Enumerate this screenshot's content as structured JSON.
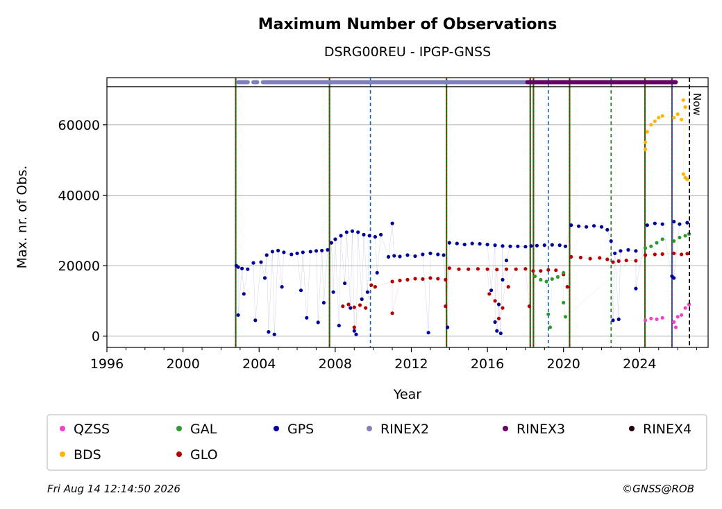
{
  "chart_data": {
    "type": "scatter",
    "title": "Maximum Number of Observations",
    "subtitle": "DSRG00REU - IPGP-GNSS",
    "xlabel": "Year",
    "ylabel": "Max. nr. of Obs.",
    "xlim": [
      1996,
      2027.6
    ],
    "ylim": [
      -3200,
      70800
    ],
    "x_ticks": [
      1996,
      2000,
      2004,
      2008,
      2012,
      2016,
      2020,
      2024
    ],
    "y_ticks": [
      0,
      20000,
      40000,
      60000
    ],
    "grid": true,
    "now_label": "Now",
    "now_year": 2026.62,
    "legend_position": "bottom",
    "legend": [
      {
        "name": "QZSS",
        "color": "#f042c8"
      },
      {
        "name": "GAL",
        "color": "#2e9a2e"
      },
      {
        "name": "GPS",
        "color": "#000099"
      },
      {
        "name": "RINEX2",
        "color": "#8080c0"
      },
      {
        "name": "RINEX3",
        "color": "#660066"
      },
      {
        "name": "RINEX4",
        "color": "#220011"
      },
      {
        "name": "BDS",
        "color": "#ffb400"
      },
      {
        "name": "GLO",
        "color": "#b30000"
      }
    ],
    "series": [
      {
        "name": "GPS",
        "color": "#000099",
        "points": [
          [
            2002.8,
            20000
          ],
          [
            2002.9,
            19600
          ],
          [
            2003.1,
            19200
          ],
          [
            2003.4,
            19000
          ],
          [
            2003.7,
            20800
          ],
          [
            2004.1,
            21000
          ],
          [
            2004.4,
            23000
          ],
          [
            2004.7,
            24000
          ],
          [
            2005.0,
            24300
          ],
          [
            2005.3,
            23800
          ],
          [
            2005.7,
            23200
          ],
          [
            2006.0,
            23500
          ],
          [
            2006.3,
            23800
          ],
          [
            2006.7,
            24000
          ],
          [
            2007.0,
            24200
          ],
          [
            2007.3,
            24300
          ],
          [
            2007.6,
            24500
          ],
          [
            2007.8,
            26500
          ],
          [
            2008.0,
            27500
          ],
          [
            2008.3,
            28500
          ],
          [
            2008.6,
            29500
          ],
          [
            2008.9,
            29800
          ],
          [
            2009.2,
            29500
          ],
          [
            2009.5,
            28800
          ],
          [
            2009.8,
            28500
          ],
          [
            2010.1,
            28200
          ],
          [
            2010.4,
            28800
          ],
          [
            2010.8,
            22500
          ],
          [
            2011.1,
            22800
          ],
          [
            2011.4,
            22600
          ],
          [
            2011.8,
            23000
          ],
          [
            2012.2,
            22700
          ],
          [
            2012.6,
            23200
          ],
          [
            2013.0,
            23500
          ],
          [
            2013.4,
            23200
          ],
          [
            2013.7,
            23000
          ],
          [
            2014.0,
            26500
          ],
          [
            2014.4,
            26300
          ],
          [
            2014.8,
            26000
          ],
          [
            2015.2,
            26300
          ],
          [
            2015.6,
            26200
          ],
          [
            2016.0,
            26000
          ],
          [
            2016.4,
            25800
          ],
          [
            2016.8,
            25600
          ],
          [
            2017.2,
            25500
          ],
          [
            2017.6,
            25500
          ],
          [
            2018.0,
            25400
          ],
          [
            2018.3,
            25600
          ],
          [
            2018.6,
            25700
          ],
          [
            2019.0,
            25800
          ],
          [
            2019.4,
            25900
          ],
          [
            2019.8,
            25800
          ],
          [
            2020.1,
            25500
          ],
          [
            2020.4,
            31500
          ],
          [
            2020.8,
            31200
          ],
          [
            2021.2,
            31000
          ],
          [
            2021.6,
            31300
          ],
          [
            2022.0,
            31000
          ],
          [
            2022.3,
            30200
          ],
          [
            2022.5,
            27000
          ],
          [
            2022.7,
            23500
          ],
          [
            2023.0,
            24200
          ],
          [
            2023.4,
            24500
          ],
          [
            2023.8,
            24200
          ],
          [
            2024.4,
            31500
          ],
          [
            2024.8,
            32000
          ],
          [
            2025.2,
            31800
          ],
          [
            2025.8,
            32500
          ],
          [
            2026.1,
            31800
          ],
          [
            2026.5,
            32200
          ],
          [
            2002.9,
            6000
          ],
          [
            2003.2,
            12000
          ],
          [
            2003.8,
            4500
          ],
          [
            2004.3,
            16500
          ],
          [
            2004.5,
            1200
          ],
          [
            2004.8,
            500
          ],
          [
            2005.2,
            14000
          ],
          [
            2006.2,
            13000
          ],
          [
            2006.5,
            5200
          ],
          [
            2007.1,
            3900
          ],
          [
            2007.4,
            9500
          ],
          [
            2007.9,
            12500
          ],
          [
            2008.2,
            3000
          ],
          [
            2008.5,
            15000
          ],
          [
            2008.8,
            8000
          ],
          [
            2009.0,
            1500
          ],
          [
            2009.1,
            500
          ],
          [
            2009.4,
            10500
          ],
          [
            2009.7,
            12500
          ],
          [
            2010.2,
            18000
          ],
          [
            2011.0,
            32000
          ],
          [
            2012.9,
            1000
          ],
          [
            2013.9,
            2500
          ],
          [
            2016.2,
            13000
          ],
          [
            2016.4,
            4000
          ],
          [
            2016.5,
            1500
          ],
          [
            2016.6,
            9000
          ],
          [
            2016.7,
            800
          ],
          [
            2016.8,
            16000
          ],
          [
            2017.0,
            21500
          ],
          [
            2022.6,
            4500
          ],
          [
            2022.9,
            4800
          ],
          [
            2023.8,
            13500
          ],
          [
            2025.7,
            17000
          ],
          [
            2025.8,
            16500
          ]
        ]
      },
      {
        "name": "GLO",
        "color": "#b30000",
        "points": [
          [
            2008.4,
            8500
          ],
          [
            2008.7,
            9000
          ],
          [
            2009.0,
            8200
          ],
          [
            2009.3,
            8800
          ],
          [
            2009.6,
            8000
          ],
          [
            2009.9,
            14500
          ],
          [
            2010.1,
            14000
          ],
          [
            2011.0,
            15500
          ],
          [
            2011.4,
            15800
          ],
          [
            2011.8,
            16000
          ],
          [
            2012.2,
            16300
          ],
          [
            2012.6,
            16200
          ],
          [
            2013.0,
            16500
          ],
          [
            2013.4,
            16300
          ],
          [
            2013.8,
            16000
          ],
          [
            2014.0,
            19300
          ],
          [
            2014.5,
            19000
          ],
          [
            2015.0,
            19000
          ],
          [
            2015.5,
            19100
          ],
          [
            2016.0,
            19000
          ],
          [
            2016.5,
            18900
          ],
          [
            2017.0,
            19000
          ],
          [
            2017.5,
            19000
          ],
          [
            2018.0,
            19100
          ],
          [
            2018.4,
            18500
          ],
          [
            2018.8,
            18500
          ],
          [
            2019.2,
            18800
          ],
          [
            2019.6,
            18700
          ],
          [
            2020.0,
            17500
          ],
          [
            2020.4,
            22500
          ],
          [
            2020.9,
            22300
          ],
          [
            2021.4,
            22000
          ],
          [
            2021.9,
            22200
          ],
          [
            2022.3,
            21800
          ],
          [
            2022.6,
            21000
          ],
          [
            2022.9,
            21300
          ],
          [
            2023.3,
            21500
          ],
          [
            2023.8,
            21400
          ],
          [
            2024.3,
            23000
          ],
          [
            2024.8,
            23200
          ],
          [
            2025.2,
            23300
          ],
          [
            2025.8,
            23500
          ],
          [
            2026.2,
            23200
          ],
          [
            2026.5,
            23400
          ],
          [
            2016.1,
            12000
          ],
          [
            2016.4,
            10000
          ],
          [
            2016.6,
            5000
          ],
          [
            2016.8,
            8000
          ],
          [
            2017.1,
            14000
          ],
          [
            2018.2,
            8500
          ],
          [
            2013.8,
            8500
          ],
          [
            2011.0,
            6500
          ],
          [
            2020.2,
            14000
          ],
          [
            2009.0,
            2500
          ]
        ]
      },
      {
        "name": "GAL",
        "color": "#2e9a2e",
        "points": [
          [
            2018.5,
            17000
          ],
          [
            2018.8,
            16000
          ],
          [
            2019.1,
            15500
          ],
          [
            2019.4,
            16200
          ],
          [
            2019.7,
            16800
          ],
          [
            2020.0,
            18000
          ],
          [
            2019.2,
            6200
          ],
          [
            2019.3,
            2500
          ],
          [
            2020.0,
            9500
          ],
          [
            2020.1,
            5500
          ],
          [
            2024.3,
            25000
          ],
          [
            2024.6,
            25500
          ],
          [
            2024.9,
            26500
          ],
          [
            2025.2,
            27500
          ],
          [
            2025.8,
            27000
          ],
          [
            2026.1,
            28000
          ],
          [
            2026.4,
            28500
          ],
          [
            2026.6,
            29000
          ]
        ]
      },
      {
        "name": "BDS",
        "color": "#ffb400",
        "points": [
          [
            2024.3,
            55000
          ],
          [
            2024.4,
            58000
          ],
          [
            2024.6,
            60000
          ],
          [
            2024.8,
            61000
          ],
          [
            2025.0,
            62000
          ],
          [
            2025.2,
            62500
          ],
          [
            2025.8,
            62000
          ],
          [
            2026.0,
            63000
          ],
          [
            2026.2,
            61500
          ],
          [
            2026.3,
            67000
          ],
          [
            2026.4,
            65000
          ],
          [
            2026.3,
            46000
          ],
          [
            2026.4,
            45000
          ],
          [
            2026.5,
            44500
          ],
          [
            2024.3,
            53000
          ]
        ]
      },
      {
        "name": "QZSS",
        "color": "#f042c8",
        "points": [
          [
            2024.3,
            4500
          ],
          [
            2024.6,
            5000
          ],
          [
            2024.9,
            4800
          ],
          [
            2025.2,
            5200
          ],
          [
            2025.8,
            4000
          ],
          [
            2026.0,
            5500
          ],
          [
            2026.2,
            6000
          ],
          [
            2026.4,
            8000
          ],
          [
            2026.6,
            9000
          ],
          [
            2025.9,
            2500
          ]
        ]
      }
    ],
    "rinex_coverage": [
      {
        "name": "RINEX2",
        "color": "#8080c0",
        "ranges": [
          [
            2002.9,
            2003.4
          ],
          [
            2003.7,
            2003.9
          ],
          [
            2004.2,
            2018.1
          ]
        ]
      },
      {
        "name": "RINEX3",
        "color": "#660066",
        "ranges": [
          [
            2018.1,
            2025.9
          ]
        ]
      }
    ],
    "event_lines": [
      {
        "year": 2002.77,
        "kind": "solid"
      },
      {
        "year": 2007.7,
        "kind": "solid"
      },
      {
        "year": 2009.85,
        "kind": "dashed-blue"
      },
      {
        "year": 2013.85,
        "kind": "solid"
      },
      {
        "year": 2018.25,
        "kind": "solid"
      },
      {
        "year": 2018.42,
        "kind": "solid"
      },
      {
        "year": 2019.2,
        "kind": "dashed-blue"
      },
      {
        "year": 2020.32,
        "kind": "solid"
      },
      {
        "year": 2022.5,
        "kind": "dashed-green"
      },
      {
        "year": 2024.28,
        "kind": "solid"
      },
      {
        "year": 2025.7,
        "kind": "solid-blue"
      }
    ]
  },
  "footer": {
    "timestamp": "Fri Aug 14 12:14:50 2026",
    "credit": "©GNSS@ROB"
  }
}
